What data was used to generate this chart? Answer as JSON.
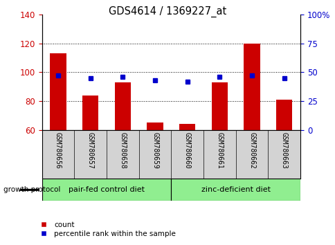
{
  "title": "GDS4614 / 1369227_at",
  "samples": [
    "GSM780656",
    "GSM780657",
    "GSM780658",
    "GSM780659",
    "GSM780660",
    "GSM780661",
    "GSM780662",
    "GSM780663"
  ],
  "counts": [
    113,
    84,
    93,
    65,
    64,
    93,
    120,
    81
  ],
  "percentiles": [
    47,
    45,
    46,
    43,
    42,
    46,
    47,
    45
  ],
  "ylim_left": [
    60,
    140
  ],
  "ylim_right": [
    0,
    100
  ],
  "yticks_left": [
    60,
    80,
    100,
    120,
    140
  ],
  "yticks_right": [
    0,
    25,
    50,
    75,
    100
  ],
  "bar_color": "#cc0000",
  "square_color": "#0000cc",
  "bar_width": 0.5,
  "group1_label": "pair-fed control diet",
  "group2_label": "zinc-deficient diet",
  "group1_count": 4,
  "group2_count": 4,
  "group_bg_color": "#90ee90",
  "growth_protocol_label": "growth protocol",
  "tick_color_left": "#cc0000",
  "tick_color_right": "#0000cc",
  "sample_bg": "#d3d3d3",
  "legend_label1": "count",
  "legend_label2": "percentile rank within the sample",
  "grid_lines": [
    80,
    100,
    120
  ]
}
